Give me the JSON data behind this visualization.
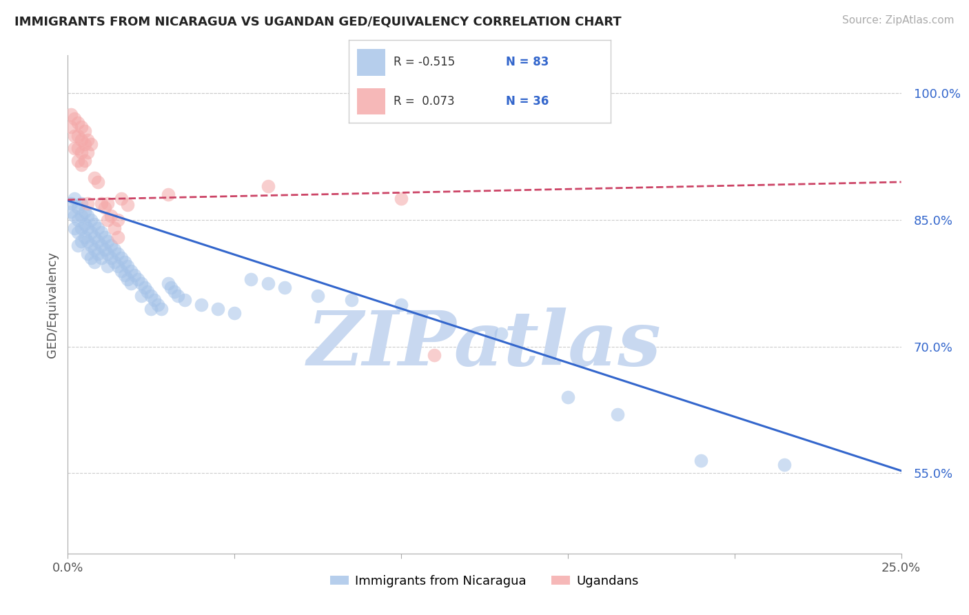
{
  "title": "IMMIGRANTS FROM NICARAGUA VS UGANDAN GED/EQUIVALENCY CORRELATION CHART",
  "source_text": "Source: ZipAtlas.com",
  "ylabel": "GED/Equivalency",
  "legend_label_1": "Immigrants from Nicaragua",
  "legend_label_2": "Ugandans",
  "R1": -0.515,
  "N1": 83,
  "R2": 0.073,
  "N2": 36,
  "xlim": [
    0.0,
    0.25
  ],
  "ylim": [
    0.455,
    1.045
  ],
  "yticks": [
    0.55,
    0.7,
    0.85,
    1.0
  ],
  "ytick_labels": [
    "55.0%",
    "70.0%",
    "85.0%",
    "100.0%"
  ],
  "color_blue": "#a4c2e8",
  "color_pink": "#f4a7a7",
  "line_color_blue": "#3366cc",
  "line_color_pink": "#cc4466",
  "watermark_text": "ZIPatlas",
  "watermark_color": "#c8d8f0",
  "background_color": "#ffffff",
  "grid_color": "#cccccc",
  "blue_points": [
    [
      0.001,
      0.87
    ],
    [
      0.001,
      0.86
    ],
    [
      0.002,
      0.875
    ],
    [
      0.002,
      0.855
    ],
    [
      0.002,
      0.84
    ],
    [
      0.003,
      0.865
    ],
    [
      0.003,
      0.85
    ],
    [
      0.003,
      0.835
    ],
    [
      0.003,
      0.82
    ],
    [
      0.004,
      0.87
    ],
    [
      0.004,
      0.855
    ],
    [
      0.004,
      0.84
    ],
    [
      0.004,
      0.825
    ],
    [
      0.005,
      0.86
    ],
    [
      0.005,
      0.845
    ],
    [
      0.005,
      0.83
    ],
    [
      0.006,
      0.855
    ],
    [
      0.006,
      0.84
    ],
    [
      0.006,
      0.825
    ],
    [
      0.006,
      0.81
    ],
    [
      0.007,
      0.85
    ],
    [
      0.007,
      0.835
    ],
    [
      0.007,
      0.82
    ],
    [
      0.007,
      0.805
    ],
    [
      0.008,
      0.845
    ],
    [
      0.008,
      0.83
    ],
    [
      0.008,
      0.815
    ],
    [
      0.008,
      0.8
    ],
    [
      0.009,
      0.84
    ],
    [
      0.009,
      0.825
    ],
    [
      0.009,
      0.81
    ],
    [
      0.01,
      0.835
    ],
    [
      0.01,
      0.82
    ],
    [
      0.01,
      0.805
    ],
    [
      0.011,
      0.83
    ],
    [
      0.011,
      0.815
    ],
    [
      0.012,
      0.825
    ],
    [
      0.012,
      0.81
    ],
    [
      0.012,
      0.795
    ],
    [
      0.013,
      0.82
    ],
    [
      0.013,
      0.805
    ],
    [
      0.014,
      0.815
    ],
    [
      0.014,
      0.8
    ],
    [
      0.015,
      0.81
    ],
    [
      0.015,
      0.795
    ],
    [
      0.016,
      0.805
    ],
    [
      0.016,
      0.79
    ],
    [
      0.017,
      0.8
    ],
    [
      0.017,
      0.785
    ],
    [
      0.018,
      0.795
    ],
    [
      0.018,
      0.78
    ],
    [
      0.019,
      0.79
    ],
    [
      0.019,
      0.775
    ],
    [
      0.02,
      0.785
    ],
    [
      0.021,
      0.78
    ],
    [
      0.022,
      0.775
    ],
    [
      0.022,
      0.76
    ],
    [
      0.023,
      0.77
    ],
    [
      0.024,
      0.765
    ],
    [
      0.025,
      0.76
    ],
    [
      0.025,
      0.745
    ],
    [
      0.026,
      0.755
    ],
    [
      0.027,
      0.75
    ],
    [
      0.028,
      0.745
    ],
    [
      0.03,
      0.775
    ],
    [
      0.031,
      0.77
    ],
    [
      0.032,
      0.765
    ],
    [
      0.033,
      0.76
    ],
    [
      0.035,
      0.755
    ],
    [
      0.04,
      0.75
    ],
    [
      0.045,
      0.745
    ],
    [
      0.05,
      0.74
    ],
    [
      0.055,
      0.78
    ],
    [
      0.06,
      0.775
    ],
    [
      0.065,
      0.77
    ],
    [
      0.075,
      0.76
    ],
    [
      0.085,
      0.755
    ],
    [
      0.1,
      0.75
    ],
    [
      0.13,
      0.715
    ],
    [
      0.15,
      0.64
    ],
    [
      0.165,
      0.62
    ],
    [
      0.19,
      0.565
    ],
    [
      0.215,
      0.56
    ]
  ],
  "pink_points": [
    [
      0.001,
      0.975
    ],
    [
      0.001,
      0.96
    ],
    [
      0.002,
      0.97
    ],
    [
      0.002,
      0.95
    ],
    [
      0.002,
      0.935
    ],
    [
      0.003,
      0.965
    ],
    [
      0.003,
      0.95
    ],
    [
      0.003,
      0.935
    ],
    [
      0.003,
      0.92
    ],
    [
      0.004,
      0.96
    ],
    [
      0.004,
      0.945
    ],
    [
      0.004,
      0.93
    ],
    [
      0.004,
      0.915
    ],
    [
      0.005,
      0.955
    ],
    [
      0.005,
      0.94
    ],
    [
      0.005,
      0.92
    ],
    [
      0.006,
      0.945
    ],
    [
      0.006,
      0.93
    ],
    [
      0.006,
      0.87
    ],
    [
      0.007,
      0.94
    ],
    [
      0.008,
      0.9
    ],
    [
      0.009,
      0.895
    ],
    [
      0.01,
      0.87
    ],
    [
      0.011,
      0.865
    ],
    [
      0.012,
      0.87
    ],
    [
      0.012,
      0.85
    ],
    [
      0.013,
      0.855
    ],
    [
      0.014,
      0.84
    ],
    [
      0.015,
      0.85
    ],
    [
      0.015,
      0.83
    ],
    [
      0.016,
      0.875
    ],
    [
      0.018,
      0.868
    ],
    [
      0.03,
      0.88
    ],
    [
      0.06,
      0.89
    ],
    [
      0.1,
      0.875
    ],
    [
      0.11,
      0.69
    ]
  ],
  "blue_trend_x": [
    0.0,
    0.25
  ],
  "blue_trend_y": [
    0.873,
    0.553
  ],
  "pink_trend_x": [
    0.0,
    0.25
  ],
  "pink_trend_y": [
    0.874,
    0.895
  ]
}
